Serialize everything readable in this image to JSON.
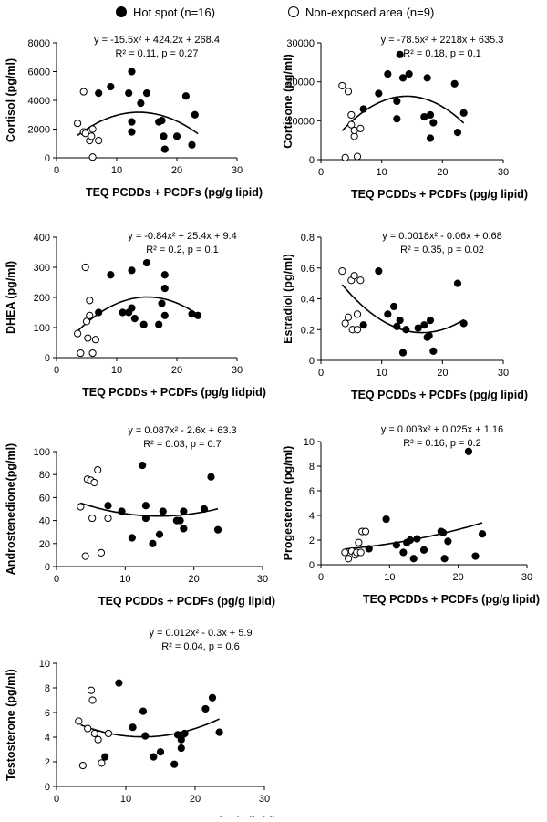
{
  "legend": {
    "hot_label": "Hot spot (n=16)",
    "non_label": "Non-exposed area (n=9)"
  },
  "colors": {
    "hot": "#000000",
    "non": "#ffffff",
    "axis": "#000000",
    "curve": "#000000"
  },
  "chart_data": [
    {
      "type": "scatter",
      "id": "cortisol",
      "ylabel": "Cortisol (pg/ml)",
      "xlabel": "TEQ PCDDs + PCDFs (pg/g lipid)",
      "eq_line1": "y = -15.5x² + 424.2x + 268.4",
      "eq_line2": "R² = 0.11, p = 0.27",
      "xlim": [
        0,
        30
      ],
      "ylim": [
        0,
        8000
      ],
      "xticks": [
        0,
        10,
        20,
        30
      ],
      "yticks": [
        0,
        2000,
        4000,
        6000,
        8000
      ],
      "fit": [
        -15.5,
        424.2,
        268.4
      ],
      "fit_range": [
        3.5,
        23.5
      ],
      "hot": [
        [
          7,
          4500
        ],
        [
          9,
          4950
        ],
        [
          12,
          4500
        ],
        [
          12.5,
          6000
        ],
        [
          12.5,
          2500
        ],
        [
          12.5,
          1800
        ],
        [
          14,
          3800
        ],
        [
          15,
          4500
        ],
        [
          17,
          2500
        ],
        [
          17.5,
          2600
        ],
        [
          17.8,
          1500
        ],
        [
          18,
          600
        ],
        [
          20,
          1500
        ],
        [
          21.5,
          4300
        ],
        [
          22.5,
          900
        ],
        [
          23,
          3000
        ]
      ],
      "non": [
        [
          3.5,
          2400
        ],
        [
          4.5,
          4600
        ],
        [
          4.5,
          1800
        ],
        [
          4.8,
          1700
        ],
        [
          5.5,
          1200
        ],
        [
          5.8,
          1500
        ],
        [
          6,
          2000
        ],
        [
          7,
          1200
        ],
        [
          6,
          50
        ]
      ]
    },
    {
      "type": "scatter",
      "id": "cortisone",
      "ylabel": "Cortisone (pg/ml)",
      "xlabel": "TEQ PCDDs + PCDFs (pg/g lipid)",
      "eq_line1": "y = -78.5x² + 2218x + 635.3",
      "eq_line2": "R² = 0.18, p = 0.1",
      "xlim": [
        0,
        30
      ],
      "ylim": [
        0,
        30000
      ],
      "xticks": [
        0,
        10,
        20,
        30
      ],
      "yticks": [
        0,
        10000,
        20000,
        30000
      ],
      "fit": [
        -78.5,
        2218,
        635.3
      ],
      "fit_range": [
        3.5,
        23.5
      ],
      "hot": [
        [
          7,
          13000
        ],
        [
          9.5,
          17000
        ],
        [
          11,
          22000
        ],
        [
          12.5,
          10500
        ],
        [
          12.5,
          15000
        ],
        [
          13,
          27000
        ],
        [
          13.5,
          21000
        ],
        [
          14.5,
          22000
        ],
        [
          17,
          11000
        ],
        [
          17.5,
          21000
        ],
        [
          18,
          5500
        ],
        [
          18.5,
          9500
        ],
        [
          18,
          11500
        ],
        [
          22,
          19500
        ],
        [
          22.5,
          7000
        ],
        [
          23.5,
          12000
        ]
      ],
      "non": [
        [
          3.5,
          19000
        ],
        [
          4,
          500
        ],
        [
          4.5,
          17500
        ],
        [
          5,
          9000
        ],
        [
          5,
          11500
        ],
        [
          5.5,
          6000
        ],
        [
          5.5,
          7500
        ],
        [
          6,
          800
        ],
        [
          6.5,
          8000
        ]
      ]
    },
    {
      "type": "scatter",
      "id": "dhea",
      "ylabel": "DHEA (pg/ml)",
      "xlabel": "TEQ PCDDs + PCDFs (pg/g lidpid)",
      "eq_line1": "y = -0.84x² + 25.4x + 9.4",
      "eq_line2": "R² = 0.2, p = 0.1",
      "xlim": [
        0,
        30
      ],
      "ylim": [
        0,
        400
      ],
      "xticks": [
        0,
        10,
        20,
        30
      ],
      "yticks": [
        0,
        100,
        200,
        300,
        400
      ],
      "fit": [
        -0.84,
        25.4,
        9.4
      ],
      "fit_range": [
        3.5,
        23.5
      ],
      "hot": [
        [
          7,
          150
        ],
        [
          9,
          275
        ],
        [
          11,
          150
        ],
        [
          12,
          150
        ],
        [
          12.5,
          290
        ],
        [
          12.5,
          165
        ],
        [
          13,
          130
        ],
        [
          14.5,
          110
        ],
        [
          15,
          315
        ],
        [
          17,
          110
        ],
        [
          17.5,
          180
        ],
        [
          18,
          275
        ],
        [
          18,
          230
        ],
        [
          18,
          140
        ],
        [
          22.5,
          145
        ],
        [
          23.5,
          140
        ]
      ],
      "non": [
        [
          3.5,
          80
        ],
        [
          4,
          15
        ],
        [
          4.8,
          300
        ],
        [
          5,
          120
        ],
        [
          5.2,
          65
        ],
        [
          5.5,
          190
        ],
        [
          5.5,
          140
        ],
        [
          6,
          15
        ],
        [
          6.5,
          60
        ]
      ]
    },
    {
      "type": "scatter",
      "id": "estradiol",
      "ylabel": "Estradiol (pg/ml)",
      "xlabel": "TEQ PCDDs + PCDFs (pg/g lipid)",
      "eq_line1": "y = 0.0018x² - 0.06x + 0.68",
      "eq_line2": "R² = 0.35, p = 0.02",
      "xlim": [
        0,
        30
      ],
      "ylim": [
        0,
        0.8
      ],
      "xticks": [
        0,
        10,
        20,
        30
      ],
      "yticks": [
        0,
        0.2,
        0.4,
        0.6,
        0.8
      ],
      "fit": [
        0.0018,
        -0.06,
        0.68
      ],
      "fit_range": [
        3.5,
        23.5
      ],
      "hot": [
        [
          7,
          0.23
        ],
        [
          9.5,
          0.58
        ],
        [
          11,
          0.3
        ],
        [
          12,
          0.35
        ],
        [
          12.5,
          0.22
        ],
        [
          13,
          0.26
        ],
        [
          13.5,
          0.05
        ],
        [
          14,
          0.2
        ],
        [
          16,
          0.21
        ],
        [
          17,
          0.23
        ],
        [
          17.5,
          0.15
        ],
        [
          17.8,
          0.16
        ],
        [
          18,
          0.26
        ],
        [
          18.5,
          0.06
        ],
        [
          22.5,
          0.5
        ],
        [
          23.5,
          0.24
        ]
      ],
      "non": [
        [
          3.5,
          0.58
        ],
        [
          4,
          0.24
        ],
        [
          4.5,
          0.28
        ],
        [
          5,
          0.52
        ],
        [
          5.2,
          0.2
        ],
        [
          5.5,
          0.55
        ],
        [
          6,
          0.2
        ],
        [
          6,
          0.3
        ],
        [
          6.5,
          0.52
        ]
      ]
    },
    {
      "type": "scatter",
      "id": "androstenedione",
      "ylabel": "Androstenedione(pg/ml)",
      "xlabel": "TEQ PCDDs + PCDFs (pg/g lipid)",
      "eq_line1": "y = 0.087x² - 2.6x + 63.3",
      "eq_line2": "R² = 0.03, p = 0.7",
      "xlim": [
        0,
        30
      ],
      "ylim": [
        0,
        100
      ],
      "xticks": [
        0,
        10,
        20,
        30
      ],
      "yticks": [
        0,
        20,
        40,
        60,
        80,
        100
      ],
      "fit": [
        0.087,
        -2.6,
        63.3
      ],
      "fit_range": [
        3.5,
        23.5
      ],
      "hot": [
        [
          7.5,
          53
        ],
        [
          9.5,
          48
        ],
        [
          11,
          25
        ],
        [
          12.5,
          88
        ],
        [
          13,
          53
        ],
        [
          13,
          42
        ],
        [
          14,
          20
        ],
        [
          15,
          28
        ],
        [
          15.5,
          48
        ],
        [
          17.5,
          40
        ],
        [
          18,
          40
        ],
        [
          18.5,
          48
        ],
        [
          18.5,
          33
        ],
        [
          21.5,
          50
        ],
        [
          22.5,
          78
        ],
        [
          23.5,
          32
        ]
      ],
      "non": [
        [
          3.5,
          52
        ],
        [
          4.2,
          9
        ],
        [
          4.5,
          76
        ],
        [
          5,
          75
        ],
        [
          5.2,
          42
        ],
        [
          5.5,
          73
        ],
        [
          6,
          84
        ],
        [
          6.5,
          12
        ],
        [
          7.5,
          42
        ]
      ]
    },
    {
      "type": "scatter",
      "id": "progesterone",
      "ylabel": "Progesterone (pg/ml)",
      "xlabel": "TEQ PCDDs + PCDFs (pg/g lipid)",
      "eq_line1": "y = 0.003x² + 0.025x + 1.16",
      "eq_line2": "R² = 0.16, p = 0.2",
      "xlim": [
        0,
        30
      ],
      "ylim": [
        0,
        10
      ],
      "xticks": [
        0,
        10,
        20,
        30
      ],
      "yticks": [
        0,
        2,
        4,
        6,
        8,
        10
      ],
      "fit": [
        0.003,
        0.025,
        1.16
      ],
      "fit_range": [
        3.5,
        23.5
      ],
      "hot": [
        [
          7,
          1.3
        ],
        [
          9.5,
          3.7
        ],
        [
          11,
          1.6
        ],
        [
          12,
          1
        ],
        [
          12.5,
          1.8
        ],
        [
          13,
          2
        ],
        [
          13.5,
          0.5
        ],
        [
          14,
          2.1
        ],
        [
          15,
          1.2
        ],
        [
          17.5,
          2.7
        ],
        [
          17.8,
          2.6
        ],
        [
          18,
          0.5
        ],
        [
          18.5,
          1.9
        ],
        [
          21.5,
          9.2
        ],
        [
          22.5,
          0.7
        ],
        [
          23.5,
          2.5
        ]
      ],
      "non": [
        [
          3.5,
          1
        ],
        [
          4,
          0.5
        ],
        [
          4.5,
          1.1
        ],
        [
          5,
          0.8
        ],
        [
          5.2,
          1
        ],
        [
          5.5,
          1.8
        ],
        [
          5.8,
          1
        ],
        [
          6,
          2.7
        ],
        [
          6.5,
          2.7
        ]
      ]
    },
    {
      "type": "scatter",
      "id": "testosterone",
      "ylabel": "Testosterone (pg/ml)",
      "xlabel": "TEQ PCDDs + PCDFs (pg/g lipid)",
      "eq_line1": "y = 0.012x² - 0.3x + 5.9",
      "eq_line2": "R² = 0.04, p = 0.6",
      "xlim": [
        0,
        30
      ],
      "ylim": [
        0,
        10
      ],
      "xticks": [
        0,
        10,
        20,
        30
      ],
      "yticks": [
        0,
        2,
        4,
        6,
        8,
        10
      ],
      "fit": [
        0.012,
        -0.3,
        5.9
      ],
      "fit_range": [
        3.5,
        23.5
      ],
      "hot": [
        [
          7,
          2.4
        ],
        [
          9,
          8.4
        ],
        [
          11,
          4.8
        ],
        [
          12.5,
          6.1
        ],
        [
          12.8,
          4.1
        ],
        [
          14,
          2.4
        ],
        [
          15,
          2.8
        ],
        [
          17,
          1.8
        ],
        [
          17.5,
          4.2
        ],
        [
          18,
          3.1
        ],
        [
          18,
          3.8
        ],
        [
          18.5,
          4.3
        ],
        [
          18.2,
          4.2
        ],
        [
          21.5,
          6.3
        ],
        [
          22.5,
          7.2
        ],
        [
          23.5,
          4.4
        ]
      ],
      "non": [
        [
          3.2,
          5.3
        ],
        [
          3.8,
          1.7
        ],
        [
          4.5,
          4.7
        ],
        [
          5,
          7.8
        ],
        [
          5.2,
          7
        ],
        [
          5.5,
          4.3
        ],
        [
          6,
          3.8
        ],
        [
          6.5,
          1.9
        ],
        [
          7.5,
          4.3
        ]
      ]
    }
  ]
}
